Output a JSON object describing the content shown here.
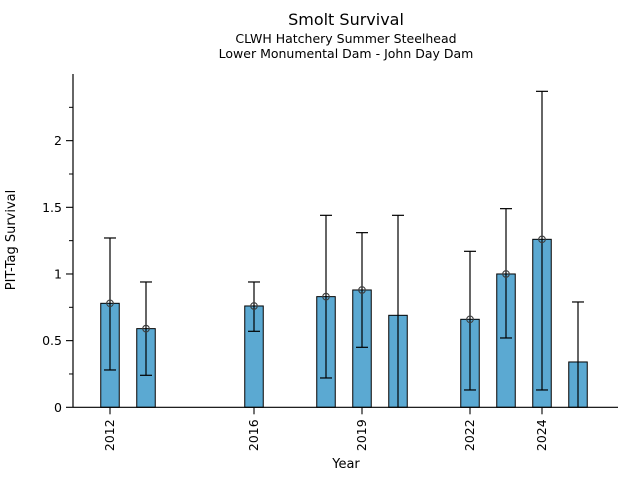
{
  "chart_data": {
    "type": "bar",
    "title": "Smolt Survival",
    "subtitle_line1": "CLWH Hatchery Summer Steelhead",
    "subtitle_line2": "Lower Monumental Dam - John Day Dam",
    "xlabel": "Year",
    "ylabel": "PIT-Tag Survival",
    "ylim": [
      0,
      2.5
    ],
    "xlim": [
      2011,
      2026.2
    ],
    "grid": false,
    "legend": "none",
    "y_major_ticks": [
      0,
      0.5,
      1,
      1.5,
      2
    ],
    "y_major_tick_labels": [
      "0",
      "0.5",
      "1",
      "1.5",
      "2"
    ],
    "y_minor_ticks": [
      0.25,
      0.75,
      1.25,
      1.75,
      2.25
    ],
    "x_ticks": [
      2012,
      2016,
      2019,
      2022,
      2024
    ],
    "x_tick_labels": [
      "2012",
      "2016",
      "2019",
      "2022",
      "2024"
    ],
    "bar_fill_color": "#5BA9D2",
    "bar_edge_color": "#000000",
    "error_bar_color": "#000000",
    "marker_edge_color": "#3d3d3d",
    "points": [
      {
        "year": 2012,
        "value": 0.78,
        "ci_lo": 0.28,
        "ci_hi": 1.27,
        "marker": true
      },
      {
        "year": 2013,
        "value": 0.59,
        "ci_lo": 0.24,
        "ci_hi": 0.94,
        "marker": true
      },
      {
        "year": 2016,
        "value": 0.76,
        "ci_lo": 0.57,
        "ci_hi": 0.94,
        "marker": true
      },
      {
        "year": 2018,
        "value": 0.83,
        "ci_lo": 0.22,
        "ci_hi": 1.44,
        "marker": true
      },
      {
        "year": 2019,
        "value": 0.88,
        "ci_lo": 0.45,
        "ci_hi": 1.31,
        "marker": true
      },
      {
        "year": 2020,
        "value": 0.69,
        "ci_lo": 0.0,
        "ci_hi": 1.44,
        "marker": false
      },
      {
        "year": 2022,
        "value": 0.66,
        "ci_lo": 0.13,
        "ci_hi": 1.17,
        "marker": true
      },
      {
        "year": 2023,
        "value": 1.0,
        "ci_lo": 0.52,
        "ci_hi": 1.49,
        "marker": true
      },
      {
        "year": 2024,
        "value": 1.26,
        "ci_lo": 0.13,
        "ci_hi": 2.37,
        "marker": true
      },
      {
        "year": 2025,
        "value": 0.34,
        "ci_lo": 0.0,
        "ci_hi": 0.79,
        "marker": false
      }
    ]
  }
}
